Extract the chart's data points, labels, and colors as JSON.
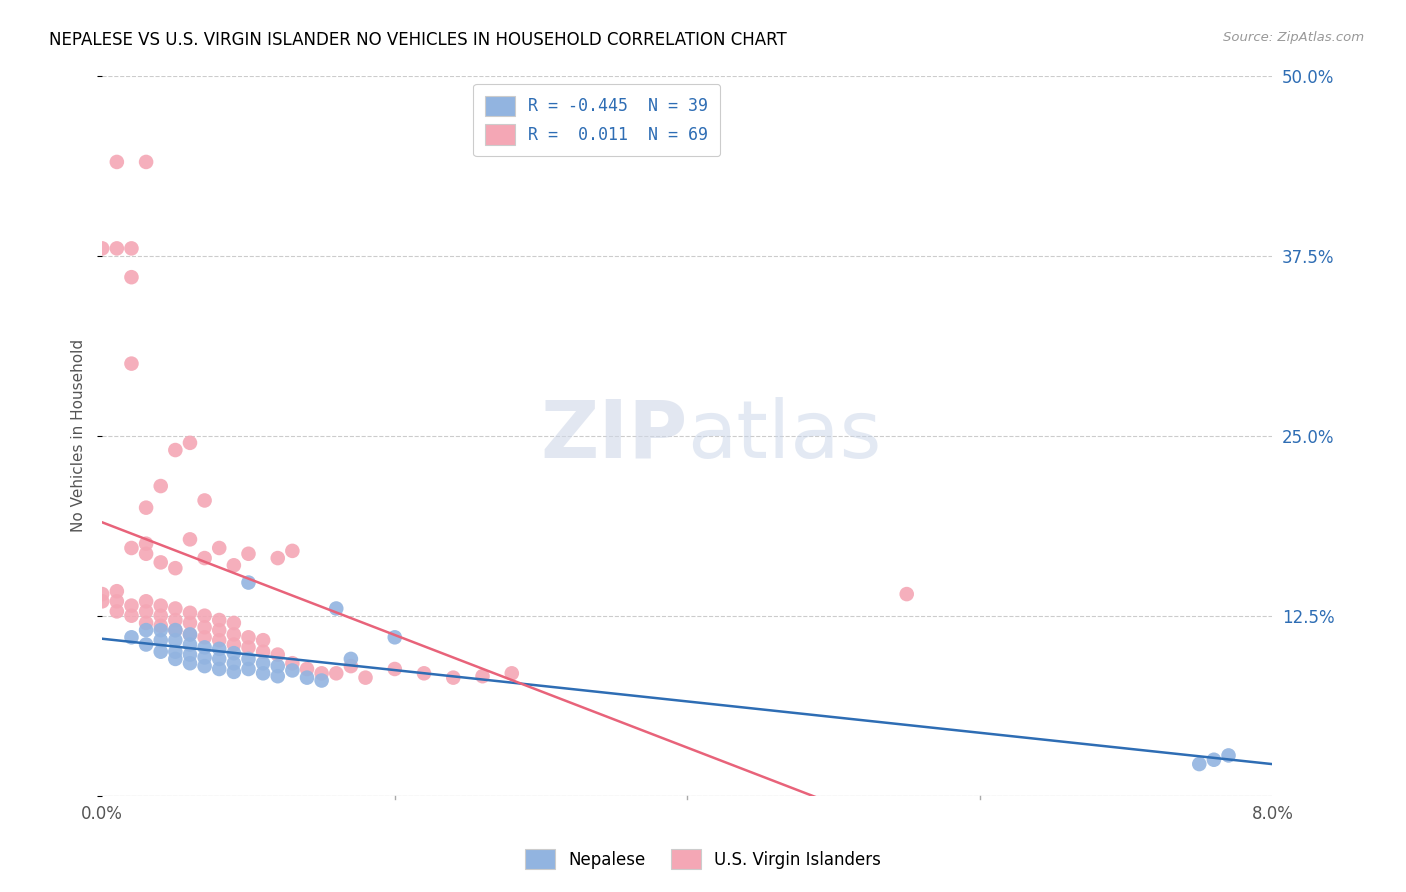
{
  "title": "NEPALESE VS U.S. VIRGIN ISLANDER NO VEHICLES IN HOUSEHOLD CORRELATION CHART",
  "source": "Source: ZipAtlas.com",
  "ylabel": "No Vehicles in Household",
  "xmin": 0.0,
  "xmax": 0.08,
  "ymin": 0.0,
  "ymax": 0.5,
  "yticks": [
    0.0,
    0.125,
    0.25,
    0.375,
    0.5
  ],
  "ytick_labels": [
    "",
    "12.5%",
    "25.0%",
    "37.5%",
    "50.0%"
  ],
  "xticks": [
    0.0,
    0.02,
    0.04,
    0.06,
    0.08
  ],
  "xtick_labels": [
    "0.0%",
    "",
    "",
    "",
    "8.0%"
  ],
  "legend_blue_label": "R = -0.445  N = 39",
  "legend_pink_label": "R =  0.011  N = 69",
  "blue_color": "#92b4e0",
  "pink_color": "#f4a7b5",
  "blue_line_color": "#2e6db4",
  "pink_line_color": "#e8637a",
  "watermark_zip": "ZIP",
  "watermark_atlas": "atlas",
  "nepalese_label": "Nepalese",
  "vi_label": "U.S. Virgin Islanders",
  "blue_x": [
    0.002,
    0.003,
    0.003,
    0.004,
    0.004,
    0.004,
    0.005,
    0.005,
    0.005,
    0.005,
    0.006,
    0.006,
    0.006,
    0.006,
    0.007,
    0.007,
    0.007,
    0.008,
    0.008,
    0.008,
    0.009,
    0.009,
    0.009,
    0.01,
    0.01,
    0.01,
    0.011,
    0.011,
    0.012,
    0.012,
    0.013,
    0.014,
    0.015,
    0.016,
    0.017,
    0.02,
    0.075,
    0.076,
    0.077
  ],
  "blue_y": [
    0.11,
    0.105,
    0.115,
    0.1,
    0.108,
    0.115,
    0.095,
    0.1,
    0.108,
    0.115,
    0.092,
    0.098,
    0.105,
    0.112,
    0.09,
    0.096,
    0.103,
    0.088,
    0.095,
    0.102,
    0.086,
    0.092,
    0.099,
    0.148,
    0.088,
    0.095,
    0.085,
    0.092,
    0.083,
    0.09,
    0.087,
    0.082,
    0.08,
    0.13,
    0.095,
    0.11,
    0.022,
    0.025,
    0.028
  ],
  "pink_x": [
    0.0,
    0.0,
    0.001,
    0.001,
    0.001,
    0.002,
    0.002,
    0.002,
    0.003,
    0.003,
    0.003,
    0.003,
    0.004,
    0.004,
    0.004,
    0.004,
    0.005,
    0.005,
    0.005,
    0.005,
    0.006,
    0.006,
    0.006,
    0.006,
    0.007,
    0.007,
    0.007,
    0.007,
    0.008,
    0.008,
    0.008,
    0.009,
    0.009,
    0.009,
    0.01,
    0.01,
    0.011,
    0.011,
    0.012,
    0.013,
    0.014,
    0.015,
    0.016,
    0.017,
    0.018,
    0.02,
    0.022,
    0.024,
    0.026,
    0.028,
    0.002,
    0.003,
    0.003,
    0.004,
    0.005,
    0.006,
    0.007,
    0.008,
    0.009,
    0.01,
    0.012,
    0.013,
    0.055,
    0.001,
    0.002,
    0.003,
    0.0,
    0.001,
    0.002
  ],
  "pink_y": [
    0.135,
    0.14,
    0.128,
    0.135,
    0.142,
    0.125,
    0.132,
    0.36,
    0.12,
    0.128,
    0.135,
    0.2,
    0.118,
    0.125,
    0.132,
    0.215,
    0.115,
    0.122,
    0.13,
    0.24,
    0.112,
    0.12,
    0.127,
    0.245,
    0.11,
    0.117,
    0.125,
    0.205,
    0.108,
    0.115,
    0.122,
    0.105,
    0.112,
    0.12,
    0.103,
    0.11,
    0.1,
    0.108,
    0.098,
    0.092,
    0.088,
    0.085,
    0.085,
    0.09,
    0.082,
    0.088,
    0.085,
    0.082,
    0.083,
    0.085,
    0.172,
    0.168,
    0.175,
    0.162,
    0.158,
    0.178,
    0.165,
    0.172,
    0.16,
    0.168,
    0.165,
    0.17,
    0.14,
    0.44,
    0.3,
    0.44,
    0.38,
    0.38,
    0.38
  ]
}
